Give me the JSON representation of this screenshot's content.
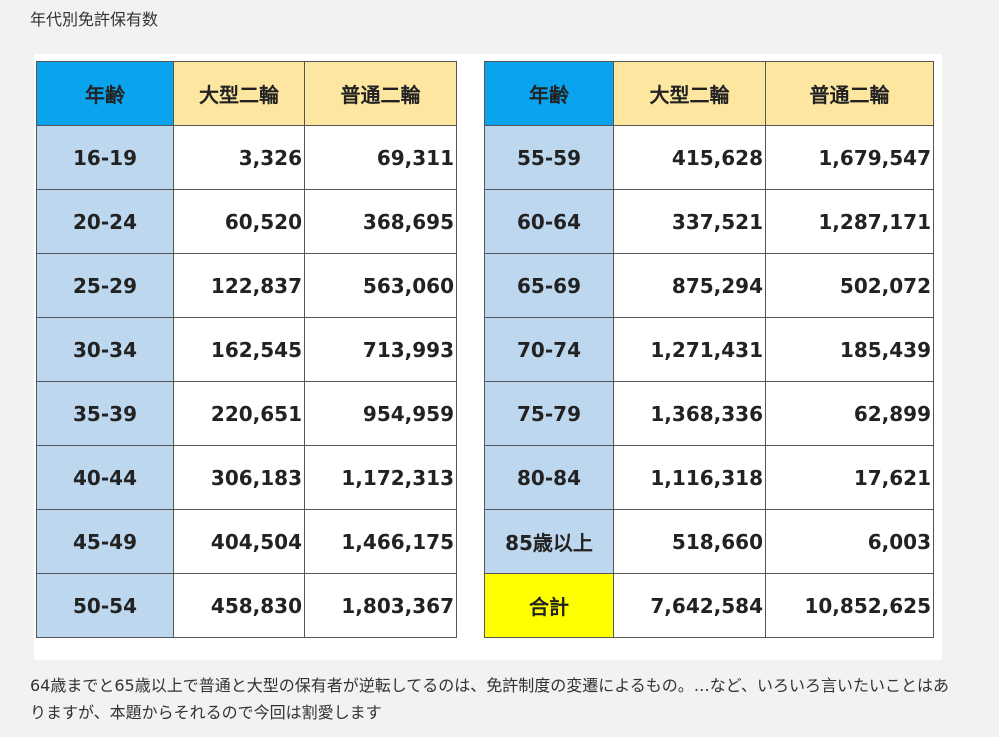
{
  "caption": "年代別免許保有数",
  "left_table": {
    "headers": [
      "年齢",
      "大型二輪",
      "普通二輪"
    ],
    "rows": [
      {
        "age": "16-19",
        "large": "3,326",
        "standard": "69,311"
      },
      {
        "age": "20-24",
        "large": "60,520",
        "standard": "368,695"
      },
      {
        "age": "25-29",
        "large": "122,837",
        "standard": "563,060"
      },
      {
        "age": "30-34",
        "large": "162,545",
        "standard": "713,993"
      },
      {
        "age": "35-39",
        "large": "220,651",
        "standard": "954,959"
      },
      {
        "age": "40-44",
        "large": "306,183",
        "standard": "1,172,313"
      },
      {
        "age": "45-49",
        "large": "404,504",
        "standard": "1,466,175"
      },
      {
        "age": "50-54",
        "large": "458,830",
        "standard": "1,803,367"
      }
    ]
  },
  "right_table": {
    "headers": [
      "年齢",
      "大型二輪",
      "普通二輪"
    ],
    "rows": [
      {
        "age": "55-59",
        "large": "415,628",
        "standard": "1,679,547"
      },
      {
        "age": "60-64",
        "large": "337,521",
        "standard": "1,287,171"
      },
      {
        "age": "65-69",
        "large": "875,294",
        "standard": "502,072"
      },
      {
        "age": "70-74",
        "large": "1,271,431",
        "standard": "185,439"
      },
      {
        "age": "75-79",
        "large": "1,368,336",
        "standard": "62,899"
      },
      {
        "age": "80-84",
        "large": "1,116,318",
        "standard": "17,621"
      },
      {
        "age": "85歳以上",
        "large": "518,660",
        "standard": "6,003"
      },
      {
        "age": "合計",
        "large": "7,642,584",
        "standard": "10,852,625",
        "is_total": true
      }
    ]
  },
  "colors": {
    "header_age": "#0aa3ee",
    "header_col": "#fde6a0",
    "age_cell": "#bdd7ee",
    "total_cell": "#ffff00"
  },
  "note": "64歳までと65歳以上で普通と大型の保有者が逆転してるのは、免許制度の変遷によるもの。…など、いろいろ言いたいことはありますが、本題からそれるので今回は割愛します"
}
